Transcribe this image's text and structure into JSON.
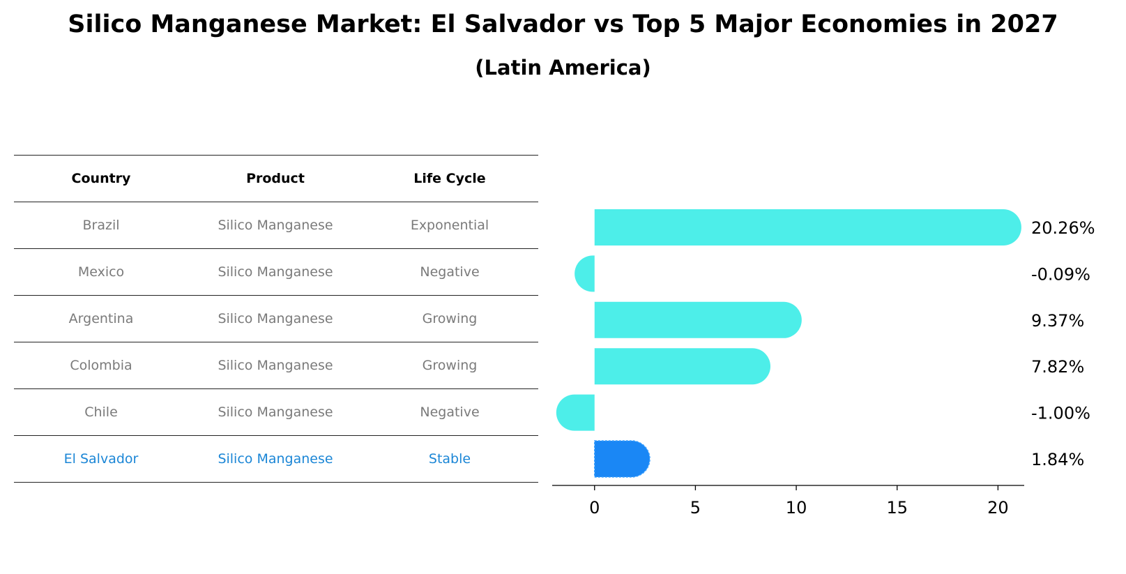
{
  "title": "Silico Manganese Market: El Salvador vs Top 5 Major Economies in 2027",
  "subtitle": "(Latin America)",
  "table": {
    "headers": [
      "Country",
      "Product",
      "Life Cycle"
    ],
    "rows": [
      {
        "country": "Brazil",
        "product": "Silico Manganese",
        "life_cycle": "Exponential"
      },
      {
        "country": "Mexico",
        "product": "Silico Manganese",
        "life_cycle": "Negative"
      },
      {
        "country": "Argentina",
        "product": "Silico Manganese",
        "life_cycle": "Growing"
      },
      {
        "country": "Colombia",
        "product": "Silico Manganese",
        "life_cycle": "Growing"
      },
      {
        "country": "Chile",
        "product": "Silico Manganese",
        "life_cycle": "Negative"
      },
      {
        "country": "El Salvador",
        "product": "Silico Manganese",
        "life_cycle": "Stable"
      }
    ]
  },
  "chart_data": {
    "type": "bar",
    "orientation": "horizontal",
    "categories": [
      "Brazil",
      "Mexico",
      "Argentina",
      "Colombia",
      "Chile",
      "El Salvador"
    ],
    "values": [
      20.26,
      -0.09,
      9.37,
      7.82,
      -1.0,
      1.84
    ],
    "value_labels": [
      "20.26%",
      "-0.09%",
      "9.37%",
      "7.82%",
      "-1.00%",
      "1.84%"
    ],
    "xlim": [
      -2.1,
      21.3
    ],
    "xticks": [
      0,
      5,
      10,
      15,
      20
    ],
    "xlabel": "",
    "ylabel": "",
    "grid": false,
    "highlight": "El Salvador",
    "colors": {
      "default": "#4deee9",
      "highlight": "#1a87f5"
    }
  }
}
